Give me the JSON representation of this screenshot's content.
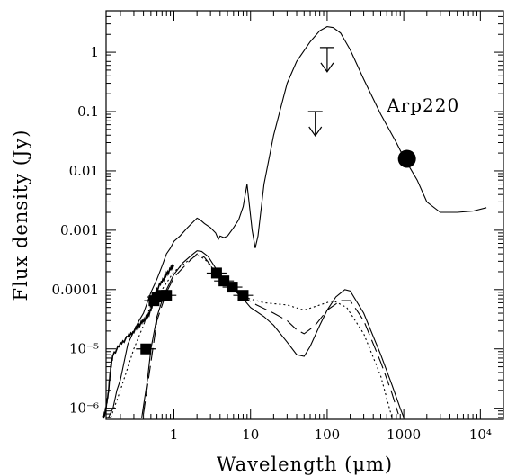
{
  "chart_data": {
    "type": "line",
    "xlabel": "Wavelength (μm)",
    "ylabel": "Flux density (Jy)",
    "xscale": "log",
    "yscale": "log",
    "xlim": [
      0.13,
      20000
    ],
    "ylim": [
      6.5e-07,
      5.0
    ],
    "grid": false,
    "x_tick_labels": [
      "1",
      "10",
      "100",
      "1000",
      "10⁴"
    ],
    "x_tick_values": [
      1,
      10,
      100,
      1000,
      10000
    ],
    "y_tick_labels": [
      "1",
      "0.1",
      "0.01",
      "0.001",
      "0.0001",
      "10⁻⁵",
      "10⁻⁶"
    ],
    "y_tick_values": [
      1,
      0.1,
      0.01,
      0.001,
      0.0001,
      1e-05,
      1e-06
    ],
    "annotations": [
      {
        "text": "Arp220",
        "x": 600,
        "y": 0.1
      }
    ],
    "series": [
      {
        "style": "solid",
        "points": [
          [
            0.14,
            7e-07
          ],
          [
            0.16,
            1e-06
          ],
          [
            0.18,
            2e-06
          ],
          [
            0.2,
            3e-06
          ],
          [
            0.25,
            1.2e-05
          ],
          [
            0.3,
            2e-05
          ],
          [
            0.35,
            3e-05
          ],
          [
            0.4,
            4e-05
          ],
          [
            0.5,
            9e-05
          ],
          [
            0.6,
            0.00015
          ],
          [
            0.7,
            0.00025
          ],
          [
            0.8,
            0.0004
          ],
          [
            0.9,
            0.0005
          ],
          [
            1.0,
            0.00065
          ],
          [
            1.2,
            0.0008
          ],
          [
            1.5,
            0.0011
          ],
          [
            1.8,
            0.0014
          ],
          [
            2.0,
            0.0016
          ],
          [
            2.2,
            0.0015
          ],
          [
            2.5,
            0.0013
          ],
          [
            3.0,
            0.0011
          ],
          [
            3.5,
            0.0009
          ],
          [
            3.8,
            0.0007
          ],
          [
            4.0,
            0.0008
          ],
          [
            4.5,
            0.00075
          ],
          [
            5.0,
            0.0008
          ],
          [
            6.0,
            0.0011
          ],
          [
            7.0,
            0.0015
          ],
          [
            8.0,
            0.0025
          ],
          [
            9.0,
            0.006
          ],
          [
            9.7,
            0.0025
          ],
          [
            10.5,
            0.001
          ],
          [
            11.5,
            0.0005
          ],
          [
            12.5,
            0.0008
          ],
          [
            15,
            0.006
          ],
          [
            20,
            0.04
          ],
          [
            30,
            0.3
          ],
          [
            40,
            0.7
          ],
          [
            60,
            1.5
          ],
          [
            80,
            2.3
          ],
          [
            100,
            2.7
          ],
          [
            120,
            2.6
          ],
          [
            150,
            2.1
          ],
          [
            200,
            1.1
          ],
          [
            300,
            0.35
          ],
          [
            500,
            0.09
          ],
          [
            800,
            0.03
          ],
          [
            1000,
            0.017
          ],
          [
            1500,
            0.007
          ],
          [
            2000,
            0.003
          ],
          [
            3000,
            0.002
          ],
          [
            5000,
            0.002
          ],
          [
            8000,
            0.0021
          ],
          [
            12000,
            0.0024
          ]
        ]
      },
      {
        "style": "solid",
        "points": [
          [
            0.38,
            7e-07
          ],
          [
            0.45,
            3e-06
          ],
          [
            0.5,
            1e-05
          ],
          [
            0.6,
            3.5e-05
          ],
          [
            0.7,
            6.5e-05
          ],
          [
            0.8,
            0.0001
          ],
          [
            1.0,
            0.00018
          ],
          [
            1.3,
            0.00028
          ],
          [
            1.7,
            0.00038
          ],
          [
            2.0,
            0.00045
          ],
          [
            2.3,
            0.00044
          ],
          [
            2.8,
            0.00036
          ],
          [
            3.5,
            0.00023
          ],
          [
            4.5,
            0.00015
          ],
          [
            6,
            0.0001
          ],
          [
            8,
            7e-05
          ],
          [
            10,
            5e-05
          ],
          [
            15,
            3.5e-05
          ],
          [
            20,
            2.5e-05
          ],
          [
            30,
            1.3e-05
          ],
          [
            40,
            8e-06
          ],
          [
            50,
            7.5e-06
          ],
          [
            60,
            1.1e-05
          ],
          [
            80,
            2.5e-05
          ],
          [
            100,
            4.5e-05
          ],
          [
            130,
            7.5e-05
          ],
          [
            170,
            0.0001
          ],
          [
            200,
            9.5e-05
          ],
          [
            300,
            4e-05
          ],
          [
            500,
            8e-06
          ],
          [
            700,
            2.5e-06
          ],
          [
            900,
            1e-06
          ],
          [
            1000,
            7e-07
          ]
        ]
      },
      {
        "style": "dashed",
        "points": [
          [
            0.4,
            8e-07
          ],
          [
            0.5,
            6e-06
          ],
          [
            0.6,
            3e-05
          ],
          [
            0.8,
            9e-05
          ],
          [
            1.0,
            0.00016
          ],
          [
            1.5,
            0.00028
          ],
          [
            2.0,
            0.0004
          ],
          [
            2.5,
            0.00035
          ],
          [
            3.5,
            0.0002
          ],
          [
            5,
            0.00012
          ],
          [
            8,
            7.5e-05
          ],
          [
            12,
            5.5e-05
          ],
          [
            20,
            4e-05
          ],
          [
            30,
            3e-05
          ],
          [
            40,
            2.1e-05
          ],
          [
            50,
            1.8e-05
          ],
          [
            70,
            2.5e-05
          ],
          [
            100,
            4.5e-05
          ],
          [
            150,
            6.5e-05
          ],
          [
            200,
            6.5e-05
          ],
          [
            300,
            3e-05
          ],
          [
            500,
            6e-06
          ],
          [
            700,
            1.8e-06
          ],
          [
            850,
            8e-07
          ]
        ]
      },
      {
        "style": "dotted",
        "points": [
          [
            0.15,
            7e-07
          ],
          [
            0.2,
            2e-06
          ],
          [
            0.3,
            1e-05
          ],
          [
            0.4,
            2.5e-05
          ],
          [
            0.5,
            5.5e-05
          ],
          [
            0.7,
            0.0001
          ],
          [
            1.0,
            0.0002
          ],
          [
            1.5,
            0.0003
          ],
          [
            2.0,
            0.00038
          ],
          [
            2.5,
            0.00033
          ],
          [
            3.5,
            0.0002
          ],
          [
            5,
            0.00012
          ],
          [
            8,
            7.5e-05
          ],
          [
            15,
            6e-05
          ],
          [
            30,
            5.5e-05
          ],
          [
            50,
            4.5e-05
          ],
          [
            80,
            5.5e-05
          ],
          [
            120,
            6.5e-05
          ],
          [
            180,
            5e-05
          ],
          [
            300,
            1.8e-05
          ],
          [
            500,
            3.5e-06
          ],
          [
            650,
            1e-06
          ],
          [
            700,
            7e-07
          ]
        ]
      },
      {
        "style": "noisy-solid",
        "points": [
          [
            0.12,
            7e-07
          ],
          [
            0.13,
            1e-06
          ],
          [
            0.14,
            2e-06
          ],
          [
            0.15,
            5e-06
          ],
          [
            0.16,
            8e-06
          ],
          [
            0.2,
            1.2e-05
          ],
          [
            0.25,
            1.6e-05
          ],
          [
            0.3,
            2e-05
          ],
          [
            0.35,
            2.5e-05
          ],
          [
            0.4,
            3e-05
          ],
          [
            0.45,
            3.5e-05
          ],
          [
            0.5,
            4.5e-05
          ],
          [
            0.55,
            7e-05
          ],
          [
            0.6,
            0.0001
          ],
          [
            0.7,
            0.00014
          ],
          [
            0.8,
            0.00018
          ],
          [
            0.9,
            0.00022
          ],
          [
            1.0,
            0.00026
          ]
        ]
      }
    ],
    "photometry_points": [
      {
        "x": 0.43,
        "y": 1e-05
      },
      {
        "x": 0.55,
        "y": 6.5e-05
      },
      {
        "x": 0.6,
        "y": 7.5e-05
      },
      {
        "x": 0.7,
        "y": 8e-05
      },
      {
        "x": 0.8,
        "y": 8e-05
      },
      {
        "x": 3.6,
        "y": 0.00019
      },
      {
        "x": 4.5,
        "y": 0.00014
      },
      {
        "x": 5.8,
        "y": 0.00011
      },
      {
        "x": 8.0,
        "y": 8e-05
      }
    ],
    "submm_point": {
      "x": 1100,
      "y": 0.016
    },
    "upper_limits": [
      {
        "x": 100,
        "y": 1.2
      },
      {
        "x": 70,
        "y": 0.1
      }
    ]
  }
}
